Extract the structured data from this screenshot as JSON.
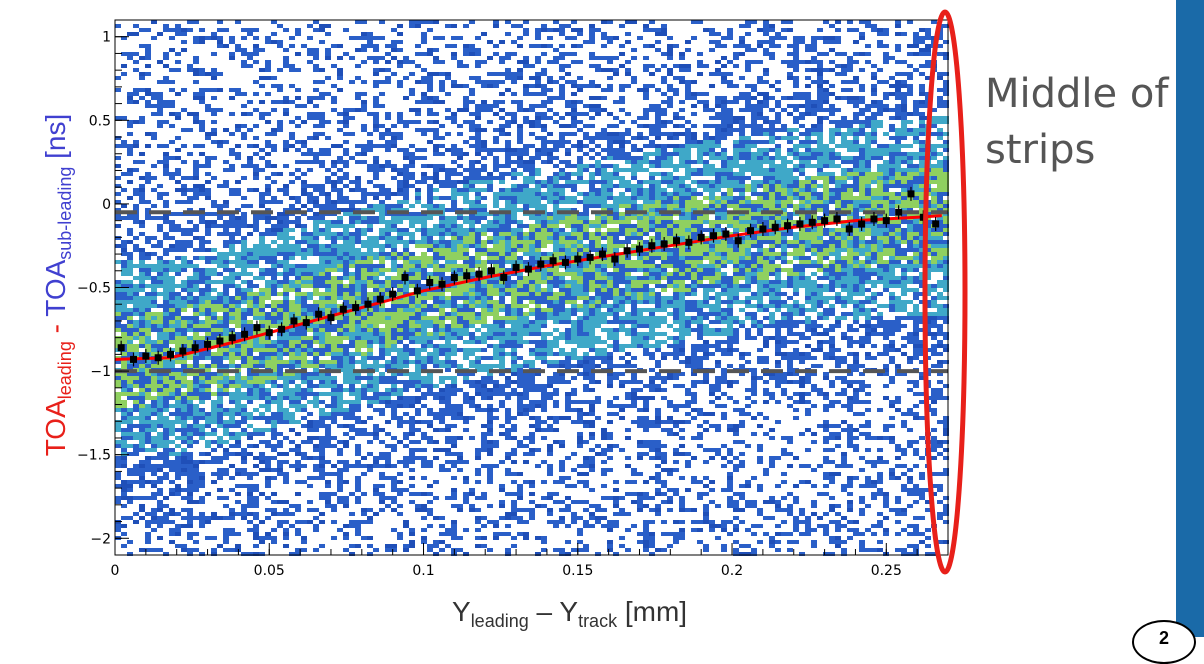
{
  "colors": {
    "red_text": "#e8201a",
    "blue_text": "#4040d0",
    "fit_line": "#ff0000",
    "points": "#000000",
    "dashed_lines": "#555555",
    "highlight_ellipse": "#e8201a",
    "heatmap_low": "#2a5fc8",
    "heatmap_mid": "#3fa8c8",
    "heatmap_high": "#8fd060",
    "side_bar": "#1a6aa8"
  },
  "annotation": {
    "line1": "Middle of",
    "line2": "strips"
  },
  "page_number": "2",
  "axes": {
    "xlabel_main": "Y",
    "xlabel_sub1": "leading",
    "xlabel_mid": " – Y",
    "xlabel_sub2": "track",
    "xlabel_unit": " [mm]",
    "ylabel_part1": "TOA",
    "ylabel_sub1": "leading",
    "ylabel_dash": " - ",
    "ylabel_part2": "TOA",
    "ylabel_sub2": "sub-leading",
    "ylabel_unit": " [ns]"
  },
  "chart_data": {
    "type": "heatmap",
    "xlim": [
      0,
      0.27
    ],
    "ylim": [
      -2.1,
      1.1
    ],
    "x_ticks": [
      {
        "value": 0,
        "label": "0"
      },
      {
        "value": 0.05,
        "label": "0.05"
      },
      {
        "value": 0.1,
        "label": "0.1"
      },
      {
        "value": 0.15,
        "label": "0.15"
      },
      {
        "value": 0.2,
        "label": "0.2"
      },
      {
        "value": 0.25,
        "label": "0.25"
      }
    ],
    "y_ticks": [
      {
        "value": 1,
        "label": "1"
      },
      {
        "value": 0.5,
        "label": "0.5"
      },
      {
        "value": 0,
        "label": "0"
      },
      {
        "value": -0.5,
        "label": "−0.5"
      },
      {
        "value": -1,
        "label": "−1"
      },
      {
        "value": -1.5,
        "label": "−1.5"
      },
      {
        "value": -2,
        "label": "−2"
      }
    ],
    "reference_lines_y": [
      -0.05,
      -1.0
    ],
    "profile_points": {
      "x": [
        0.002,
        0.006,
        0.01,
        0.014,
        0.018,
        0.022,
        0.026,
        0.03,
        0.034,
        0.038,
        0.042,
        0.046,
        0.05,
        0.054,
        0.058,
        0.062,
        0.066,
        0.07,
        0.074,
        0.078,
        0.082,
        0.086,
        0.09,
        0.094,
        0.098,
        0.102,
        0.106,
        0.11,
        0.114,
        0.118,
        0.122,
        0.126,
        0.13,
        0.134,
        0.138,
        0.142,
        0.146,
        0.15,
        0.154,
        0.158,
        0.162,
        0.166,
        0.17,
        0.174,
        0.178,
        0.182,
        0.186,
        0.19,
        0.194,
        0.198,
        0.202,
        0.206,
        0.21,
        0.214,
        0.218,
        0.222,
        0.226,
        0.23,
        0.234,
        0.238,
        0.242,
        0.246,
        0.25,
        0.254,
        0.258,
        0.262,
        0.266
      ],
      "y": [
        -0.86,
        -0.93,
        -0.91,
        -0.92,
        -0.9,
        -0.88,
        -0.86,
        -0.84,
        -0.82,
        -0.8,
        -0.78,
        -0.74,
        -0.77,
        -0.75,
        -0.7,
        -0.71,
        -0.66,
        -0.68,
        -0.63,
        -0.62,
        -0.6,
        -0.57,
        -0.54,
        -0.44,
        -0.52,
        -0.47,
        -0.48,
        -0.44,
        -0.43,
        -0.42,
        -0.4,
        -0.44,
        -0.38,
        -0.39,
        -0.36,
        -0.34,
        -0.35,
        -0.33,
        -0.32,
        -0.3,
        -0.33,
        -0.28,
        -0.27,
        -0.25,
        -0.24,
        -0.22,
        -0.23,
        -0.2,
        -0.19,
        -0.18,
        -0.22,
        -0.16,
        -0.15,
        -0.14,
        -0.13,
        -0.12,
        -0.11,
        -0.1,
        -0.09,
        -0.15,
        -0.12,
        -0.09,
        -0.1,
        -0.05,
        0.06,
        -0.08,
        -0.12
      ]
    },
    "fit_curve": {
      "x": [
        0,
        0.018,
        0.04,
        0.06,
        0.08,
        0.1,
        0.12,
        0.14,
        0.16,
        0.18,
        0.2,
        0.22,
        0.24,
        0.26,
        0.268
      ],
      "y": [
        -0.93,
        -0.92,
        -0.82,
        -0.72,
        -0.62,
        -0.52,
        -0.44,
        -0.37,
        -0.31,
        -0.25,
        -0.19,
        -0.14,
        -0.1,
        -0.08,
        -0.07
      ]
    }
  }
}
